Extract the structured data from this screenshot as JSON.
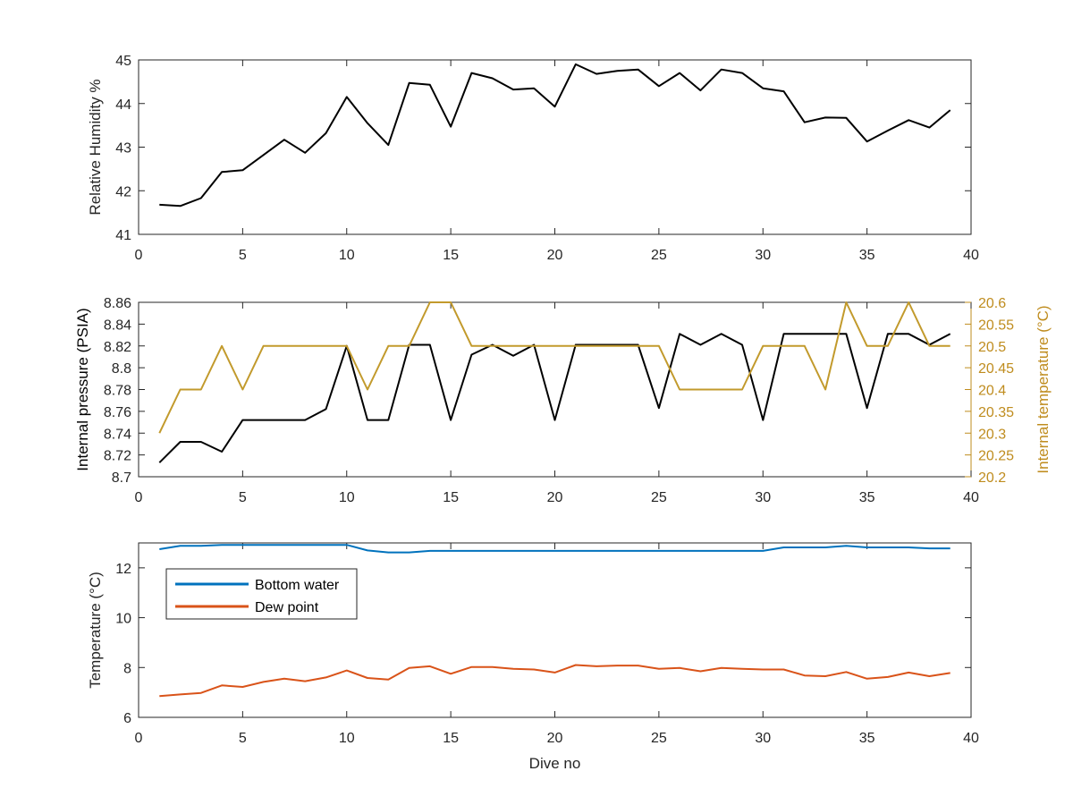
{
  "chart_data": [
    {
      "type": "line",
      "xlabel": "",
      "ylabel": "Relative Humidity %",
      "xlim": [
        0,
        40
      ],
      "ylim": [
        41,
        45
      ],
      "xticks": [
        "0",
        "5",
        "10",
        "15",
        "20",
        "25",
        "30",
        "35",
        "40"
      ],
      "yticks": [
        "41",
        "42",
        "43",
        "44",
        "45"
      ],
      "grid": false,
      "series": [
        {
          "color": "#000000",
          "x": [
            1,
            2,
            3,
            4,
            5,
            6,
            7,
            8,
            9,
            10,
            11,
            12,
            13,
            14,
            15,
            16,
            17,
            18,
            19,
            20,
            21,
            22,
            23,
            24,
            25,
            26,
            27,
            28,
            29,
            30,
            31,
            32,
            33,
            34,
            35,
            36,
            37,
            38,
            39
          ],
          "values": [
            41.68,
            41.65,
            41.83,
            42.43,
            42.47,
            42.82,
            43.17,
            42.87,
            43.32,
            44.15,
            43.55,
            43.05,
            44.47,
            44.43,
            43.47,
            44.7,
            44.58,
            44.32,
            44.35,
            43.93,
            44.9,
            44.68,
            44.75,
            44.78,
            44.4,
            44.7,
            44.3,
            44.78,
            44.7,
            44.35,
            44.28,
            43.57,
            43.68,
            43.67,
            43.13,
            43.38,
            43.62,
            43.45,
            43.85
          ]
        }
      ]
    },
    {
      "type": "line",
      "xlabel": "",
      "ylabel": "Internal pressure (PSIA)",
      "ylabel_right": "Internal temperature (°C)",
      "xlim": [
        0,
        40
      ],
      "ylim": [
        8.7,
        8.86
      ],
      "ylim_right": [
        20.2,
        20.6
      ],
      "xticks": [
        "0",
        "5",
        "10",
        "15",
        "20",
        "25",
        "30",
        "35",
        "40"
      ],
      "yticks": [
        "8.7",
        "8.72",
        "8.74",
        "8.76",
        "8.78",
        "8.8",
        "8.82",
        "8.84",
        "8.86"
      ],
      "yticks_right": [
        "20.2",
        "20.25",
        "20.3",
        "20.35",
        "20.4",
        "20.45",
        "20.5",
        "20.55",
        "20.6"
      ],
      "right_axis_color": "#bf8c1e",
      "grid": false,
      "series": [
        {
          "axis": "left",
          "color": "#000000",
          "x": [
            1,
            2,
            3,
            4,
            5,
            6,
            7,
            8,
            9,
            10,
            11,
            12,
            13,
            14,
            15,
            16,
            17,
            18,
            19,
            20,
            21,
            22,
            23,
            24,
            25,
            26,
            27,
            28,
            29,
            30,
            31,
            32,
            33,
            34,
            35,
            36,
            37,
            38,
            39
          ],
          "values": [
            8.713,
            8.732,
            8.732,
            8.723,
            8.752,
            8.752,
            8.752,
            8.752,
            8.762,
            8.82,
            8.752,
            8.752,
            8.821,
            8.821,
            8.752,
            8.812,
            8.821,
            8.811,
            8.821,
            8.752,
            8.821,
            8.821,
            8.821,
            8.821,
            8.763,
            8.831,
            8.821,
            8.831,
            8.821,
            8.752,
            8.831,
            8.831,
            8.831,
            8.831,
            8.763,
            8.831,
            8.831,
            8.821,
            8.831
          ]
        },
        {
          "axis": "right",
          "color": "#c29a2c",
          "x": [
            1,
            2,
            3,
            4,
            5,
            6,
            7,
            8,
            9,
            10,
            11,
            12,
            13,
            14,
            15,
            16,
            17,
            18,
            19,
            20,
            21,
            22,
            23,
            24,
            25,
            26,
            27,
            28,
            29,
            30,
            31,
            32,
            33,
            34,
            35,
            36,
            37,
            38,
            39
          ],
          "values": [
            20.3,
            20.4,
            20.4,
            20.5,
            20.4,
            20.5,
            20.5,
            20.5,
            20.5,
            20.5,
            20.4,
            20.5,
            20.5,
            20.6,
            20.6,
            20.5,
            20.5,
            20.5,
            20.5,
            20.5,
            20.5,
            20.5,
            20.5,
            20.5,
            20.5,
            20.4,
            20.4,
            20.4,
            20.4,
            20.5,
            20.5,
            20.5,
            20.4,
            20.6,
            20.5,
            20.5,
            20.6,
            20.5,
            20.5
          ]
        }
      ]
    },
    {
      "type": "line",
      "xlabel": "Dive no",
      "ylabel": "Temperature (°C)",
      "xlim": [
        0,
        40
      ],
      "ylim": [
        6,
        13
      ],
      "xticks": [
        "0",
        "5",
        "10",
        "15",
        "20",
        "25",
        "30",
        "35",
        "40"
      ],
      "yticks": [
        "6",
        "8",
        "10",
        "12"
      ],
      "ytick_values": [
        6,
        8,
        10,
        12
      ],
      "grid": false,
      "legend": "top-left",
      "series": [
        {
          "name": "Bottom water",
          "color": "#0072bd",
          "x": [
            1,
            2,
            3,
            4,
            5,
            6,
            7,
            8,
            9,
            10,
            11,
            12,
            13,
            14,
            15,
            16,
            17,
            18,
            19,
            20,
            21,
            22,
            23,
            24,
            25,
            26,
            27,
            28,
            29,
            30,
            31,
            32,
            33,
            34,
            35,
            36,
            37,
            38,
            39
          ],
          "values": [
            12.75,
            12.88,
            12.88,
            12.92,
            12.92,
            12.92,
            12.92,
            12.92,
            12.92,
            12.92,
            12.7,
            12.62,
            12.62,
            12.68,
            12.68,
            12.68,
            12.68,
            12.68,
            12.68,
            12.68,
            12.68,
            12.68,
            12.68,
            12.68,
            12.68,
            12.68,
            12.68,
            12.68,
            12.68,
            12.68,
            12.82,
            12.82,
            12.82,
            12.88,
            12.82,
            12.82,
            12.82,
            12.78,
            12.78
          ]
        },
        {
          "name": "Dew point",
          "color": "#d95319",
          "x": [
            1,
            2,
            3,
            4,
            5,
            6,
            7,
            8,
            9,
            10,
            11,
            12,
            13,
            14,
            15,
            16,
            17,
            18,
            19,
            20,
            21,
            22,
            23,
            24,
            25,
            26,
            27,
            28,
            29,
            30,
            31,
            32,
            33,
            34,
            35,
            36,
            37,
            38,
            39
          ],
          "values": [
            6.85,
            6.92,
            6.98,
            7.28,
            7.22,
            7.42,
            7.55,
            7.45,
            7.6,
            7.88,
            7.58,
            7.52,
            7.98,
            8.05,
            7.75,
            8.02,
            8.02,
            7.95,
            7.92,
            7.8,
            8.1,
            8.05,
            8.08,
            8.08,
            7.95,
            7.98,
            7.85,
            7.98,
            7.95,
            7.92,
            7.92,
            7.68,
            7.65,
            7.82,
            7.55,
            7.62,
            7.8,
            7.65,
            7.78
          ]
        }
      ]
    }
  ]
}
